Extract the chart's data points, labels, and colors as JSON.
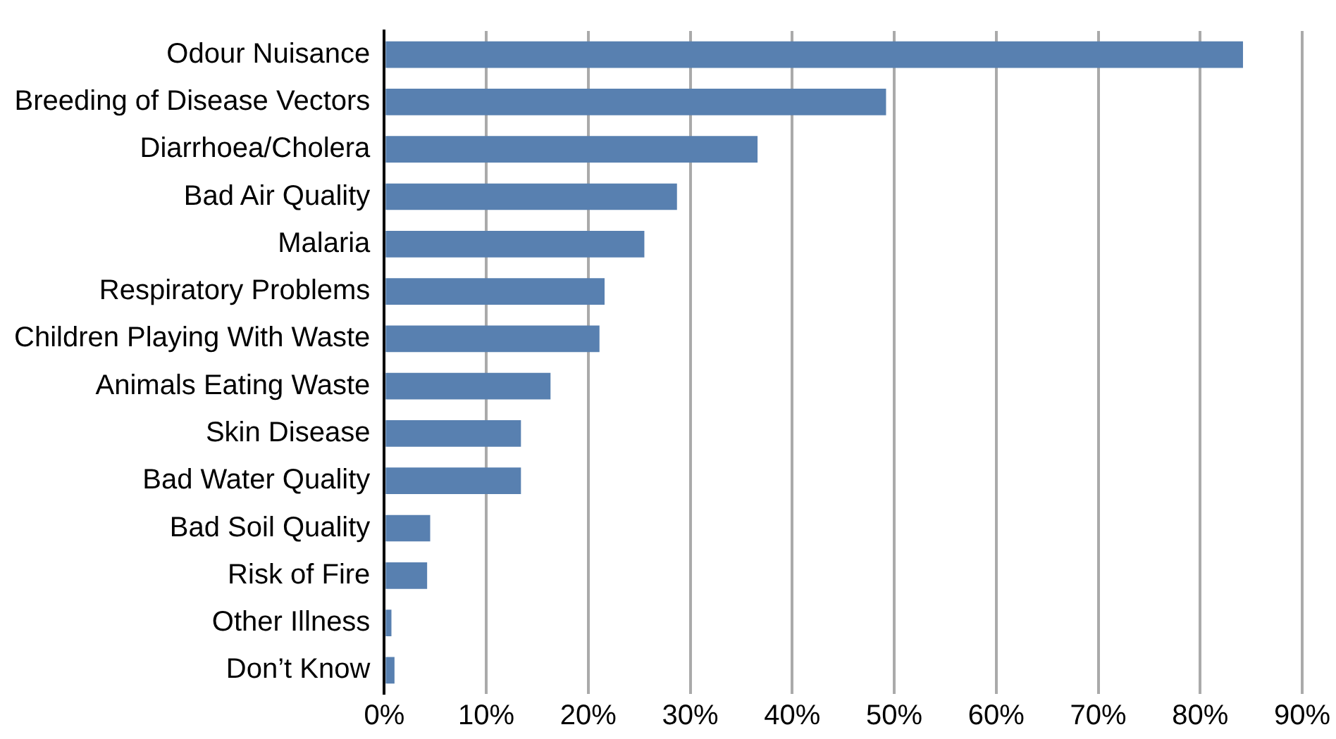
{
  "chart_data": {
    "type": "bar",
    "orientation": "horizontal",
    "categories": [
      "Odour Nuisance",
      "Breeding of Disease Vectors",
      "Diarrhoea/Cholera",
      "Bad Air Quality",
      "Malaria",
      "Respiratory Problems",
      "Children Playing With Waste",
      "Animals Eating Waste",
      "Skin Disease",
      "Bad Water Quality",
      "Bad Soil Quality",
      "Risk of Fire",
      "Other Illness",
      "Don’t Know"
    ],
    "values": [
      84.2,
      49.2,
      36.6,
      28.7,
      25.5,
      21.6,
      21.1,
      16.3,
      13.4,
      13.4,
      4.5,
      4.2,
      0.7,
      1.0
    ],
    "color": "#5880b0",
    "xlim": [
      0,
      90
    ],
    "xticks": [
      {
        "value": 0,
        "label": "0%"
      },
      {
        "value": 10,
        "label": "10%"
      },
      {
        "value": 20,
        "label": "20%"
      },
      {
        "value": 30,
        "label": "30%"
      },
      {
        "value": 40,
        "label": "40%"
      },
      {
        "value": 50,
        "label": "50%"
      },
      {
        "value": 60,
        "label": "60%"
      },
      {
        "value": 70,
        "label": "70%"
      },
      {
        "value": 80,
        "label": "80%"
      },
      {
        "value": 90,
        "label": "90%"
      }
    ],
    "grid": "x",
    "legend": false
  }
}
